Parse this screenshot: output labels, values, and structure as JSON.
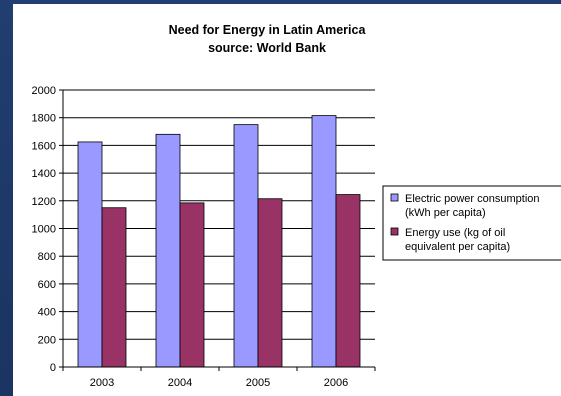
{
  "chart_data": {
    "type": "bar",
    "title": "Need for Energy in Latin America",
    "subtitle": "source: World Bank",
    "xlabel": "",
    "ylabel": "",
    "categories": [
      "2003",
      "2004",
      "2005",
      "2006"
    ],
    "series": [
      {
        "name": "Electric power consumption (kWh per capita)",
        "legend_lines": [
          "Electric power consumption",
          "(kWh per capita)"
        ],
        "color": "#9999ff",
        "values": [
          1625,
          1680,
          1750,
          1815
        ]
      },
      {
        "name": "Energy use (kg of oil equivalent per capita)",
        "legend_lines": [
          "Energy use (kg of oil",
          "equivalent per capita)"
        ],
        "color": "#993366",
        "values": [
          1150,
          1185,
          1215,
          1245
        ]
      }
    ],
    "ylim": [
      0,
      2000
    ],
    "yticks": [
      0,
      200,
      400,
      600,
      800,
      1000,
      1200,
      1400,
      1600,
      1800,
      2000
    ],
    "grid": true,
    "legend_position": "right"
  }
}
